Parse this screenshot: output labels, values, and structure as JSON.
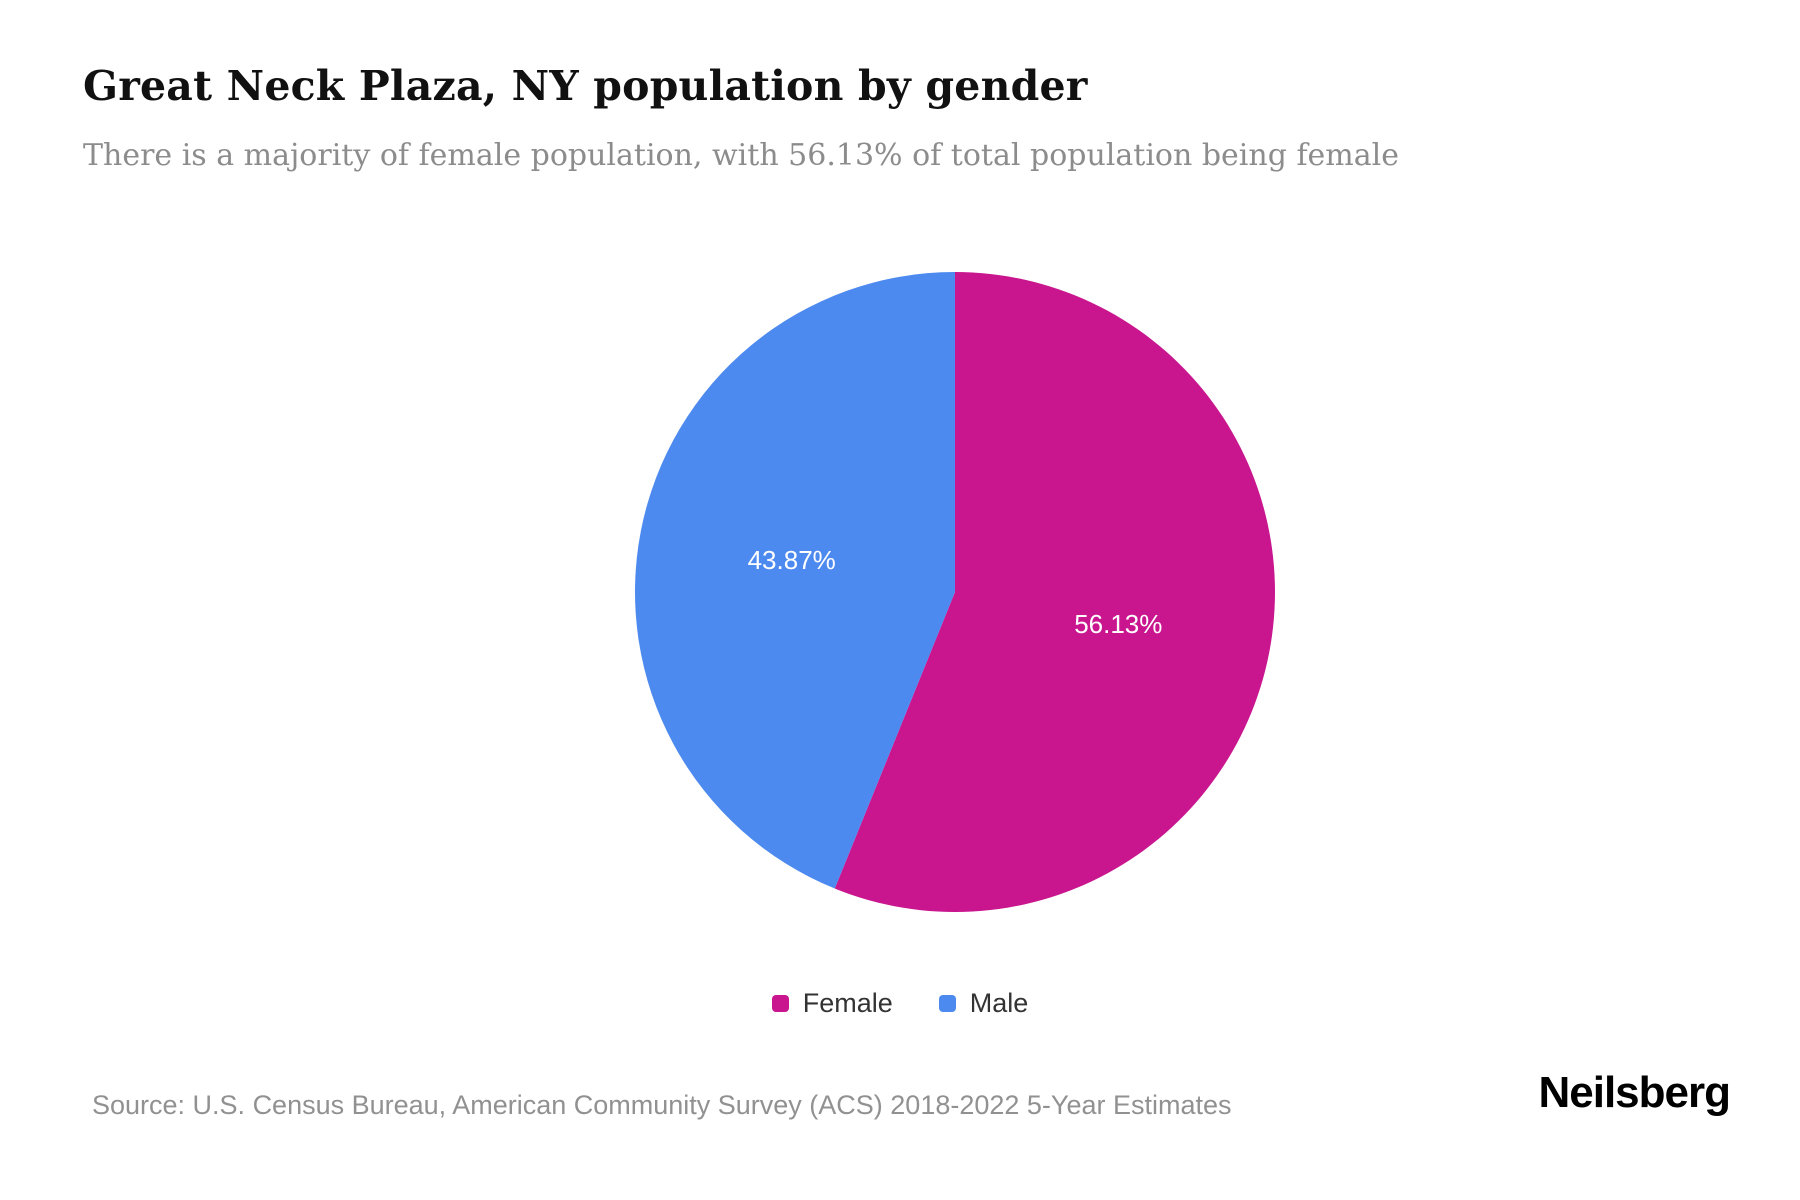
{
  "header": {
    "title": "Great Neck Plaza, NY population by gender",
    "subtitle": "There is a majority of female population, with 56.13% of total population being female"
  },
  "chart_data": {
    "type": "pie",
    "title": "Great Neck Plaza, NY population by gender",
    "unit": "percent of total population",
    "start_angle_deg": 0,
    "direction": "clockwise",
    "legend_position": "bottom",
    "slices": [
      {
        "label": "Female",
        "value": 56.13,
        "display": "56.13%",
        "color": "#c9168f"
      },
      {
        "label": "Male",
        "value": 43.87,
        "display": "43.87%",
        "color": "#4d8af0"
      }
    ]
  },
  "footer": {
    "source": "Source: U.S. Census Bureau, American Community Survey (ACS) 2018-2022 5-Year Estimates",
    "brand": "Neilsberg"
  }
}
